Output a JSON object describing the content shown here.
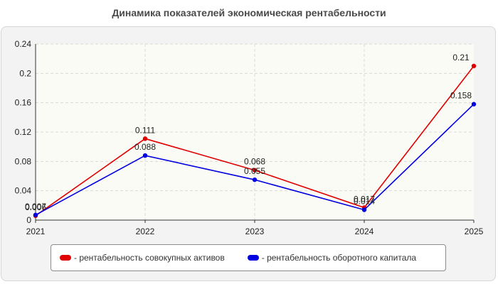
{
  "chart_data": {
    "type": "line",
    "title": "Динамика показателей экономическая рентабельности",
    "x": [
      "2021",
      "2022",
      "2023",
      "2024",
      "2025"
    ],
    "ylim": [
      0,
      0.24
    ],
    "yticks": [
      "0",
      "0.04",
      "0.08",
      "0.12",
      "0.16",
      "0.2",
      "0.24"
    ],
    "grid": true,
    "legend_position": "bottom",
    "series": [
      {
        "name": "рентабельность совокупных активов",
        "color": "#e00000",
        "values": [
          0.006,
          0.111,
          0.068,
          0.017,
          0.21
        ],
        "labels": [
          "0.006",
          "0.111",
          "0.068",
          "0.017",
          "0.21"
        ]
      },
      {
        "name": "рентабельность оборотного капитала",
        "color": "#0000e0",
        "values": [
          0.007,
          0.088,
          0.055,
          0.014,
          0.158
        ],
        "labels": [
          "0.007",
          "0.088",
          "0.055",
          "0.014",
          "0.158"
        ]
      }
    ]
  },
  "legend": {
    "item1": "- рентабельность совокупных активов",
    "item2": "- рентабельность оборотного капитала"
  }
}
